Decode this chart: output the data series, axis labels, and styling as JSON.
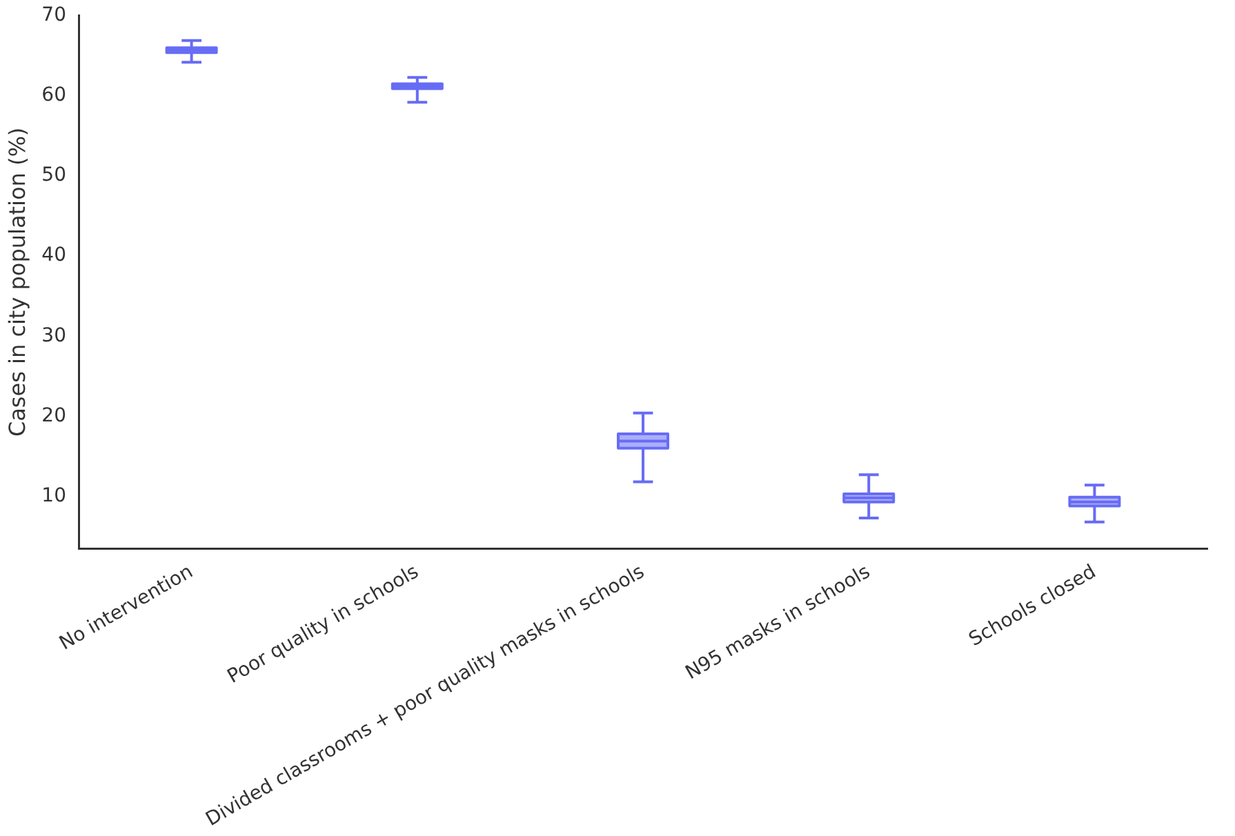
{
  "chart_data": {
    "type": "box",
    "ylabel": "Cases in city population (%)",
    "categories": [
      "No intervention",
      "Poor quality in schools",
      "Divided classrooms + poor quality masks in schools",
      "N95 masks in schools",
      "Schools closed"
    ],
    "series": [
      {
        "color": "#676cf5",
        "boxes": [
          {
            "low": 64.2,
            "q1": 65.4,
            "median": 65.7,
            "q3": 66.0,
            "high": 66.9
          },
          {
            "low": 59.2,
            "q1": 60.9,
            "median": 61.2,
            "q3": 61.5,
            "high": 62.3
          },
          {
            "low": 11.8,
            "q1": 16.0,
            "median": 16.9,
            "q3": 17.8,
            "high": 20.4
          },
          {
            "low": 7.3,
            "q1": 9.3,
            "median": 9.8,
            "q3": 10.3,
            "high": 12.7
          },
          {
            "low": 6.8,
            "q1": 8.8,
            "median": 9.3,
            "q3": 9.9,
            "high": 11.4
          }
        ]
      }
    ],
    "ylim": [
      3.5,
      70
    ],
    "yticks": [
      10,
      20,
      30,
      40,
      50,
      60,
      70
    ],
    "grid": false,
    "legend": false
  }
}
